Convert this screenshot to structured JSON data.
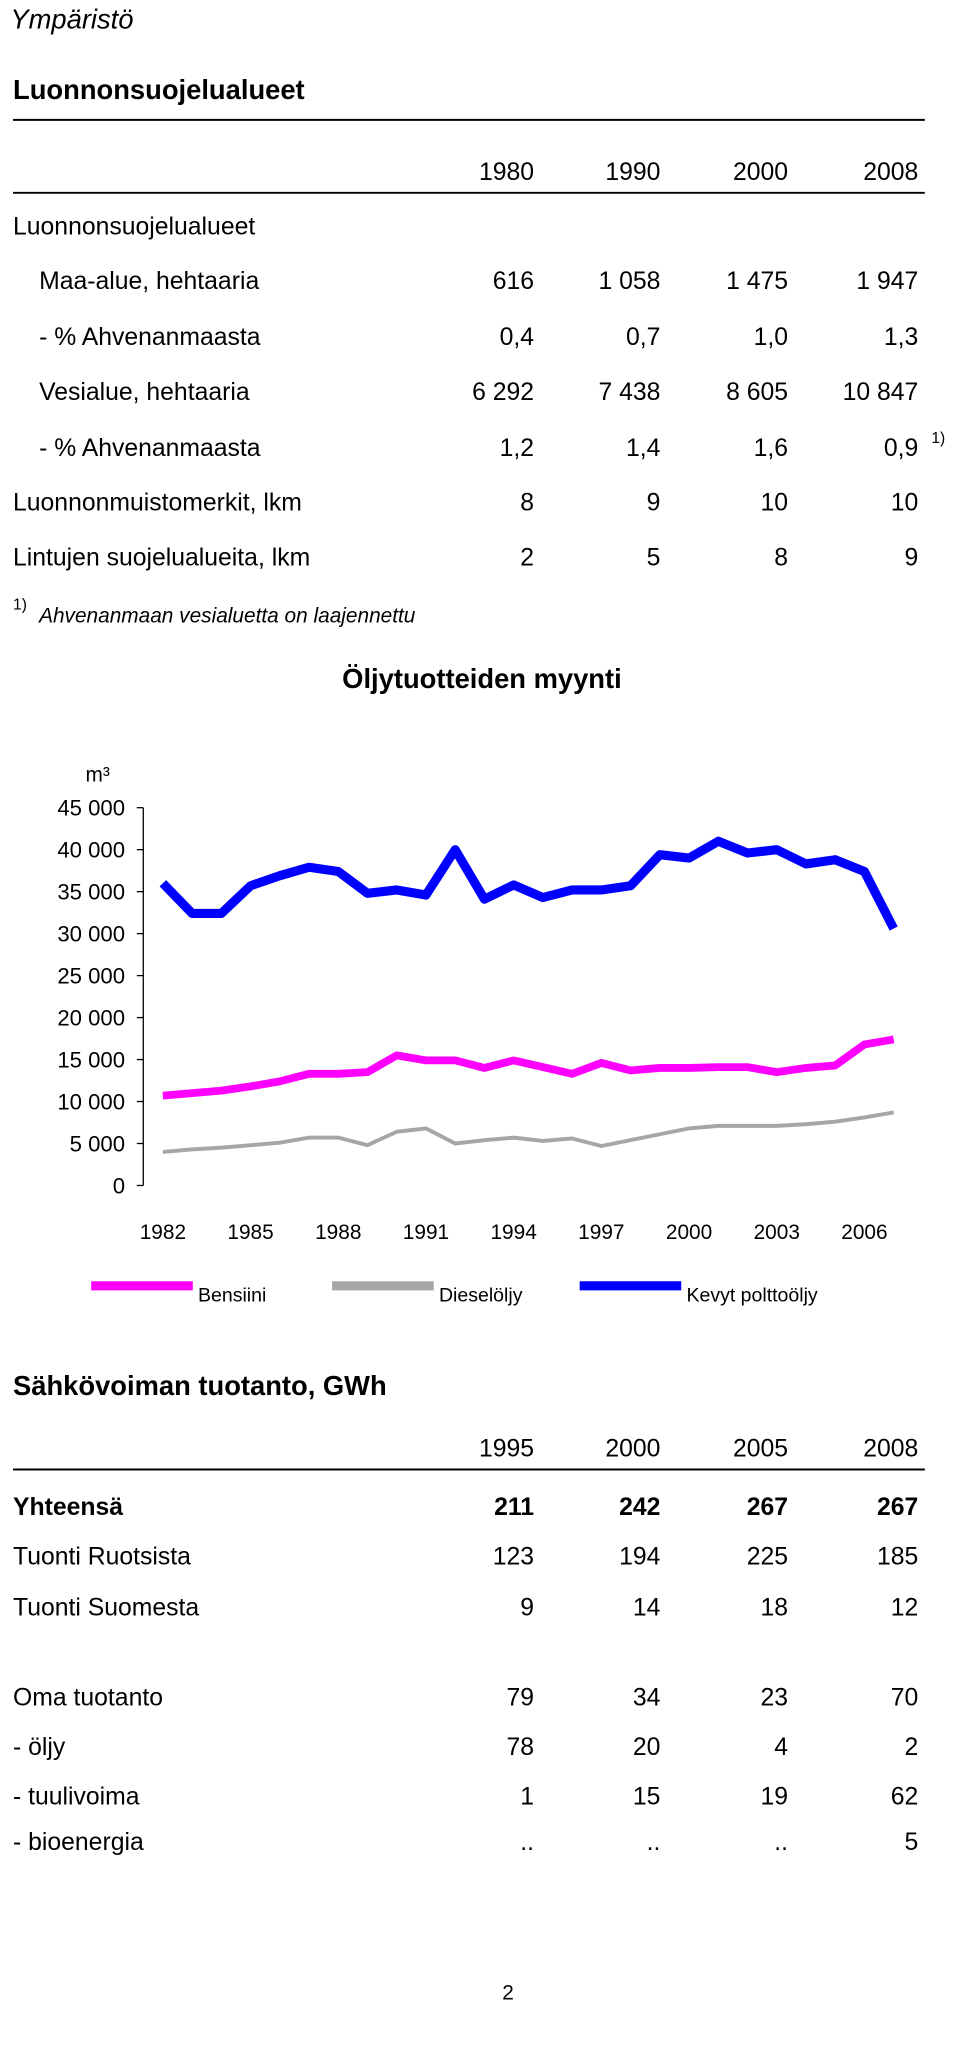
{
  "header": {
    "section": "Ympäristö"
  },
  "table1": {
    "title": "Luonnonsuojelualueet",
    "columns": [
      "1980",
      "1990",
      "2000",
      "2008"
    ],
    "rows": [
      {
        "label": "Luonnonsuojelualueet"
      },
      {
        "label": "Maa-alue, hehtaaria",
        "values": [
          "616",
          "1 058",
          "1 475",
          "1 947"
        ]
      },
      {
        "label": "- % Ahvenanmaasta",
        "values": [
          "0,4",
          "0,7",
          "1,0",
          "1,3"
        ]
      },
      {
        "label": "Vesialue, hehtaaria",
        "values": [
          "6 292",
          "7 438",
          "8 605",
          "10 847"
        ]
      },
      {
        "label": "- % Ahvenanmaasta",
        "values": [
          "1,2",
          "1,4",
          "1,6",
          "0,9"
        ],
        "note": "1)"
      },
      {
        "label": "Luonnonmuistomerkit, lkm",
        "values": [
          "8",
          "9",
          "10",
          "10"
        ]
      },
      {
        "label": "Lintujen suojelualueita, lkm",
        "values": [
          "2",
          "5",
          "8",
          "9"
        ]
      }
    ],
    "footnote": {
      "marker": "1)",
      "text": "Ahvenanmaan vesialuetta on laajennettu"
    }
  },
  "chart_data": {
    "type": "line",
    "title": "Öljytuotteiden myynti",
    "ylabel": "m³",
    "x": [
      1982,
      1983,
      1984,
      1985,
      1986,
      1987,
      1988,
      1989,
      1990,
      1991,
      1992,
      1993,
      1994,
      1995,
      1996,
      1997,
      1998,
      1999,
      2000,
      2001,
      2002,
      2003,
      2004,
      2005,
      2006,
      2007
    ],
    "xlim": [
      1981.33,
      2007.62
    ],
    "xticks": [
      1982,
      1985,
      1988,
      1991,
      1994,
      1997,
      2000,
      2003,
      2006
    ],
    "ylim": [
      0,
      45000
    ],
    "yticks": [
      0,
      {
        "value": 5000,
        "label": "5 000"
      },
      {
        "value": 10000,
        "label": "10 000"
      },
      {
        "value": 15000,
        "label": "15 000"
      },
      {
        "value": 20000,
        "label": "20 000"
      },
      {
        "value": 25000,
        "label": "25 000"
      },
      {
        "value": 30000,
        "label": "30 000"
      },
      {
        "value": 35000,
        "label": "35 000"
      },
      {
        "value": 40000,
        "label": "40 000"
      },
      {
        "value": 45000,
        "label": "45 000"
      }
    ],
    "legend": "bottom",
    "series": [
      {
        "name": "Bensiini",
        "color": "#ff00ff",
        "values": [
          10700,
          11000,
          11300,
          11800,
          12400,
          13300,
          13300,
          13500,
          15500,
          14900,
          14900,
          14000,
          14900,
          14100,
          13300,
          14600,
          13700,
          14000,
          14000,
          14100,
          14100,
          13500,
          14000,
          14300,
          16800,
          17400
        ]
      },
      {
        "name": "Dieselöljy",
        "color": "#a6a6a6",
        "values": [
          4000,
          4300,
          4500,
          4800,
          5100,
          5700,
          5700,
          4800,
          6400,
          6800,
          5000,
          5400,
          5700,
          5300,
          5600,
          4700,
          5400,
          6100,
          6800,
          7100,
          7100,
          7100,
          7300,
          7600,
          8100,
          8700
        ]
      },
      {
        "name": "Kevyt polttoöljy",
        "color": "#0000ff",
        "values": [
          36000,
          32400,
          32400,
          35700,
          36900,
          37900,
          37400,
          34800,
          35200,
          34600,
          40000,
          34100,
          35800,
          34300,
          35200,
          35200,
          35700,
          39400,
          39000,
          41000,
          39600,
          40000,
          38300,
          38800,
          37400,
          30600
        ]
      }
    ]
  },
  "table2": {
    "title": "Sähkövoiman tuotanto, GWh",
    "columns": [
      "1995",
      "2000",
      "2005",
      "2008"
    ],
    "rows": [
      {
        "label": "Yhteensä",
        "values": [
          "211",
          "242",
          "267",
          "267"
        ]
      },
      {
        "label": "Tuonti Ruotsista",
        "values": [
          "123",
          "194",
          "225",
          "185"
        ]
      },
      {
        "label": "Tuonti Suomesta",
        "values": [
          "9",
          "14",
          "18",
          "12"
        ]
      },
      {
        "label": "Oma tuotanto",
        "values": [
          "79",
          "34",
          "23",
          "70"
        ]
      },
      {
        "label": "- öljy",
        "values": [
          "78",
          "20",
          "4",
          "2"
        ]
      },
      {
        "label": "- tuulivoima",
        "values": [
          "1",
          "15",
          "19",
          "62"
        ]
      },
      {
        "label": "- bioenergia",
        "values": [
          "..",
          "..",
          "..",
          "5"
        ]
      }
    ]
  },
  "footer": {
    "page": "2"
  }
}
